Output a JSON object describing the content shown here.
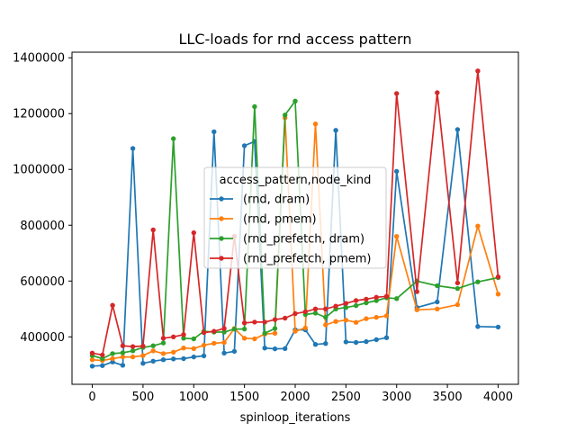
{
  "chart_data": {
    "type": "line",
    "title": "LLC-loads for rnd access pattern",
    "xlabel": "spinloop_iterations",
    "ylabel": "",
    "xlim": [
      -200,
      4200
    ],
    "ylim": [
      230000,
      1420000
    ],
    "xticks": [
      0,
      500,
      1000,
      1500,
      2000,
      2500,
      3000,
      3500,
      4000
    ],
    "yticks": [
      400000,
      600000,
      800000,
      1000000,
      1200000,
      1400000
    ],
    "grid": false,
    "legend": {
      "title": "access_pattern,node_kind",
      "placement": "center"
    },
    "series": [
      {
        "name": "(rnd, dram)",
        "color": "#1f77b4",
        "x": [
          0,
          100,
          200,
          300,
          400,
          500,
          600,
          700,
          800,
          900,
          1000,
          1100,
          1200,
          1300,
          1400,
          1500,
          1600,
          1700,
          1800,
          1900,
          2000,
          2100,
          2200,
          2300,
          2400,
          2500,
          2600,
          2700,
          2800,
          2900,
          3000,
          3200,
          3400,
          3600,
          3800,
          4000
        ],
        "y": [
          295000,
          297000,
          310000,
          298000,
          1075000,
          305000,
          313000,
          318000,
          321000,
          322000,
          328000,
          332000,
          1135000,
          342000,
          348000,
          1085000,
          1100000,
          360000,
          357000,
          358000,
          425000,
          425000,
          373000,
          376000,
          1140000,
          382000,
          380000,
          383000,
          390000,
          397000,
          993000,
          505000,
          525000,
          1143000,
          437000,
          435000
        ]
      },
      {
        "name": "(rnd, pmem)",
        "color": "#ff7f0e",
        "x": [
          0,
          100,
          200,
          300,
          400,
          500,
          600,
          700,
          800,
          900,
          1000,
          1100,
          1200,
          1300,
          1400,
          1500,
          1600,
          1700,
          1800,
          1900,
          2000,
          2100,
          2200,
          2300,
          2400,
          2500,
          2600,
          2700,
          2800,
          2900,
          3000,
          3200,
          3400,
          3600,
          3800,
          4000
        ],
        "y": [
          318000,
          315000,
          322000,
          328000,
          328000,
          333000,
          350000,
          340000,
          345000,
          360000,
          358000,
          370000,
          377000,
          380000,
          430000,
          395000,
          393000,
          410000,
          413000,
          1185000,
          420000,
          432000,
          1163000,
          443000,
          455000,
          460000,
          452000,
          465000,
          470000,
          475000,
          760000,
          497000,
          500000,
          515000,
          797000,
          553000
        ]
      },
      {
        "name": "(rnd_prefetch, dram)",
        "color": "#2ca02c",
        "x": [
          0,
          100,
          200,
          300,
          400,
          500,
          600,
          700,
          800,
          900,
          1000,
          1100,
          1200,
          1300,
          1400,
          1500,
          1600,
          1700,
          1800,
          1900,
          2000,
          2100,
          2200,
          2300,
          2400,
          2500,
          2600,
          2700,
          2800,
          2900,
          3000,
          3200,
          3400,
          3600,
          3800,
          4000
        ],
        "y": [
          333000,
          322000,
          340000,
          343000,
          350000,
          362000,
          368000,
          378000,
          1110000,
          395000,
          393000,
          420000,
          417000,
          417000,
          428000,
          428000,
          1225000,
          413000,
          430000,
          1195000,
          1245000,
          480000,
          485000,
          470000,
          500000,
          505000,
          512000,
          522000,
          530000,
          540000,
          537000,
          600000,
          583000,
          573000,
          597000,
          612000
        ]
      },
      {
        "name": "(rnd_prefetch, pmem)",
        "color": "#d62728",
        "x": [
          0,
          100,
          200,
          300,
          400,
          500,
          600,
          700,
          800,
          900,
          1000,
          1100,
          1200,
          1300,
          1400,
          1500,
          1600,
          1700,
          1800,
          1900,
          2000,
          2100,
          2200,
          2300,
          2400,
          2500,
          2600,
          2700,
          2800,
          2900,
          3000,
          3200,
          3400,
          3600,
          3800,
          4000
        ],
        "y": [
          342000,
          335000,
          513000,
          368000,
          365000,
          367000,
          783000,
          395000,
          400000,
          408000,
          773000,
          415000,
          420000,
          430000,
          760000,
          450000,
          453000,
          453000,
          462000,
          467000,
          483000,
          490000,
          500000,
          500000,
          510000,
          520000,
          530000,
          535000,
          542000,
          545000,
          1272000,
          562000,
          1275000,
          593000,
          1353000,
          615000
        ]
      }
    ]
  }
}
